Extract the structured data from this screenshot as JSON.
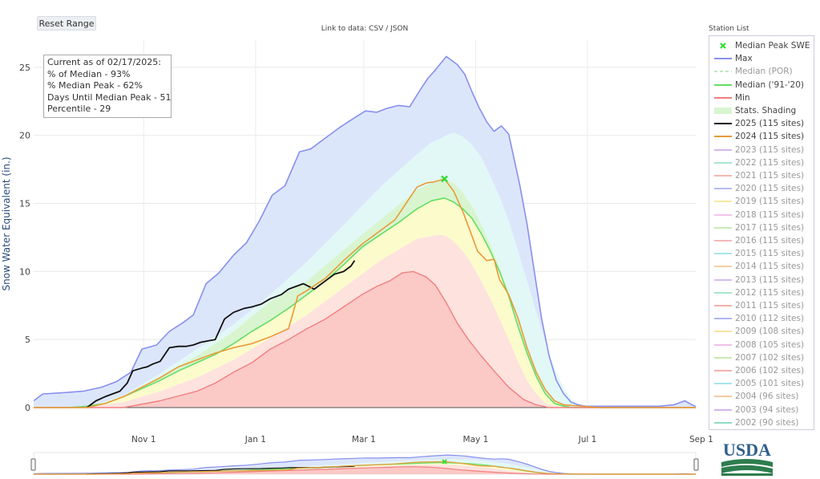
{
  "toolbar": {
    "reset_label": "Reset Range"
  },
  "link": {
    "prefix": "Link to data: ",
    "csv": "CSV",
    "sep": " / ",
    "json": "JSON"
  },
  "info": {
    "line1": "Current as of 02/17/2025:",
    "line2": "% of Median - 93%",
    "line3": "% Median Peak - 62%",
    "line4": "Days Until Median Peak - 51",
    "line5": "Percentile - 29"
  },
  "legend": {
    "title": "Station List",
    "items": [
      {
        "label": "Median Peak SWE",
        "color": "#33dd33",
        "kind": "marker",
        "active": true
      },
      {
        "label": "Max",
        "color": "#8890ee",
        "kind": "line",
        "active": true
      },
      {
        "label": "Median (POR)",
        "color": "#bfe6bf",
        "kind": "dash",
        "active": false
      },
      {
        "label": "Median ('91-'20)",
        "color": "#66dd66",
        "kind": "line",
        "active": true
      },
      {
        "label": "Min",
        "color": "#f08080",
        "kind": "line",
        "active": true
      },
      {
        "label": "Stats. Shading",
        "color": "#d8f5d0",
        "kind": "band",
        "active": true
      },
      {
        "label": "2025 (115 sites)",
        "color": "#111111",
        "kind": "line",
        "active": true
      },
      {
        "label": "2024 (115 sites)",
        "color": "#e89a3a",
        "kind": "line",
        "active": true
      },
      {
        "label": "2023 (115 sites)",
        "color": "#d3b8ec",
        "kind": "line",
        "active": false
      },
      {
        "label": "2022 (115 sites)",
        "color": "#a8e6d0",
        "kind": "line",
        "active": false
      },
      {
        "label": "2021 (115 sites)",
        "color": "#f4b8b0",
        "kind": "line",
        "active": false
      },
      {
        "label": "2020 (115 sites)",
        "color": "#b8bcf2",
        "kind": "line",
        "active": false
      },
      {
        "label": "2019 (115 sites)",
        "color": "#f7e9a0",
        "kind": "line",
        "active": false
      },
      {
        "label": "2018 (115 sites)",
        "color": "#f2c4ec",
        "kind": "line",
        "active": false
      },
      {
        "label": "2017 (115 sites)",
        "color": "#c8ecb8",
        "kind": "line",
        "active": false
      },
      {
        "label": "2016 (115 sites)",
        "color": "#f4b8b8",
        "kind": "line",
        "active": false
      },
      {
        "label": "2015 (115 sites)",
        "color": "#a8e6ea",
        "kind": "line",
        "active": false
      },
      {
        "label": "2014 (115 sites)",
        "color": "#f4d0a8",
        "kind": "line",
        "active": false
      },
      {
        "label": "2013 (115 sites)",
        "color": "#d6bcf0",
        "kind": "line",
        "active": false
      },
      {
        "label": "2012 (115 sites)",
        "color": "#a8e6c8",
        "kind": "line",
        "active": false
      },
      {
        "label": "2011 (115 sites)",
        "color": "#f4b0a8",
        "kind": "line",
        "active": false
      },
      {
        "label": "2010 (112 sites)",
        "color": "#b0b6f4",
        "kind": "line",
        "active": false
      },
      {
        "label": "2009 (108 sites)",
        "color": "#f8e4a0",
        "kind": "line",
        "active": false
      },
      {
        "label": "2008 (105 sites)",
        "color": "#f0c0e8",
        "kind": "line",
        "active": false
      },
      {
        "label": "2007 (102 sites)",
        "color": "#c8eab0",
        "kind": "line",
        "active": false
      },
      {
        "label": "2006 (102 sites)",
        "color": "#f4b0b0",
        "kind": "line",
        "active": false
      },
      {
        "label": "2005 (101 sites)",
        "color": "#a8e4ec",
        "kind": "line",
        "active": false
      },
      {
        "label": "2004 (96 sites)",
        "color": "#f4cca0",
        "kind": "line",
        "active": false
      },
      {
        "label": "2003 (94 sites)",
        "color": "#d4b4f0",
        "kind": "line",
        "active": false
      },
      {
        "label": "2002 (90 sites)",
        "color": "#90dcc0",
        "kind": "line",
        "active": false
      }
    ]
  },
  "chart_data": {
    "type": "line",
    "ylabel": "Snow Water Equivalent (in.)",
    "ylim": [
      0,
      27
    ],
    "xlim": [
      -29,
      332
    ],
    "x_unit": "day of water year (Oct 1 = 0)",
    "yticks": [
      0,
      5,
      10,
      15,
      20,
      25
    ],
    "xticks": [
      {
        "day": 31,
        "label": "Nov  1"
      },
      {
        "day": 92,
        "label": "Jan  1"
      },
      {
        "day": 151,
        "label": "Mar  1"
      },
      {
        "day": 212,
        "label": "May  1"
      },
      {
        "day": 273,
        "label": "Jul  1"
      },
      {
        "day": 335,
        "label": "Sep  1"
      }
    ],
    "grid": true,
    "legend_position": "right",
    "series": [
      {
        "name": "Max",
        "color": "#8890ee",
        "x": [
          -29,
          -24,
          -12,
          -2,
          8,
          16,
          24,
          30,
          38,
          45,
          52,
          58,
          65,
          72,
          80,
          87,
          94,
          101,
          108,
          116,
          122,
          130,
          138,
          146,
          152,
          158,
          164,
          170,
          176,
          182,
          186,
          190,
          193,
          196,
          199,
          202,
          206,
          210,
          214,
          218,
          222,
          226,
          230,
          236,
          240,
          244,
          248,
          252,
          256,
          260,
          264,
          268,
          272,
          276,
          280,
          284,
          290,
          296,
          304,
          312,
          320,
          326,
          330,
          332
        ],
        "y": [
          0.5,
          1.0,
          1.1,
          1.2,
          1.5,
          1.9,
          2.6,
          4.3,
          4.6,
          5.6,
          6.2,
          6.8,
          9.1,
          9.9,
          11.2,
          12.1,
          13.7,
          15.6,
          16.3,
          18.8,
          19.0,
          19.8,
          20.6,
          21.3,
          21.8,
          21.7,
          22.0,
          22.2,
          22.1,
          23.4,
          24.2,
          24.8,
          25.3,
          25.8,
          25.5,
          25.2,
          24.5,
          23.2,
          22.0,
          21.0,
          20.3,
          20.7,
          20.1,
          16.4,
          13.5,
          10.0,
          6.5,
          3.8,
          2.0,
          1.0,
          0.4,
          0.2,
          0.1,
          0.1,
          0.1,
          0.1,
          0.1,
          0.1,
          0.1,
          0.1,
          0.2,
          0.5,
          0.2,
          0.1
        ]
      },
      {
        "name": "Median ('91-'20)",
        "color": "#66dd66",
        "x": [
          -29,
          -10,
          0,
          10,
          20,
          30,
          40,
          50,
          60,
          70,
          80,
          90,
          100,
          110,
          120,
          130,
          140,
          150,
          160,
          170,
          180,
          188,
          195,
          200,
          205,
          210,
          215,
          220,
          225,
          230,
          235,
          240,
          245,
          250,
          255,
          260,
          265,
          270,
          280,
          300,
          320,
          332
        ],
        "y": [
          0,
          0,
          0.1,
          0.3,
          0.8,
          1.4,
          2.0,
          2.7,
          3.3,
          3.9,
          4.7,
          5.6,
          6.4,
          7.3,
          8.3,
          9.3,
          10.5,
          11.8,
          12.7,
          13.6,
          14.6,
          15.2,
          15.4,
          15.1,
          14.6,
          13.9,
          12.8,
          11.5,
          10.0,
          8.2,
          6.0,
          4.0,
          2.3,
          1.0,
          0.3,
          0.1,
          0,
          0,
          0,
          0,
          0,
          0
        ]
      },
      {
        "name": "Min",
        "color": "#f08080",
        "x": [
          -29,
          0,
          20,
          40,
          60,
          70,
          80,
          90,
          100,
          110,
          120,
          130,
          140,
          150,
          158,
          165,
          172,
          178,
          185,
          190,
          196,
          202,
          208,
          215,
          222,
          230,
          238,
          245,
          252,
          260,
          300,
          332
        ],
        "y": [
          0,
          0,
          0,
          0.5,
          1.2,
          1.8,
          2.6,
          3.3,
          4.3,
          5.0,
          5.8,
          6.5,
          7.4,
          8.3,
          8.9,
          9.3,
          9.9,
          10.0,
          9.6,
          9.0,
          7.7,
          6.2,
          5.0,
          3.8,
          2.7,
          1.5,
          0.6,
          0.2,
          0,
          0,
          0,
          0
        ]
      },
      {
        "name": "2025 (115 sites)",
        "color": "#111111",
        "x": [
          0,
          5,
          10,
          18,
          22,
          25,
          30,
          33,
          36,
          40,
          45,
          50,
          54,
          58,
          62,
          66,
          70,
          75,
          80,
          86,
          90,
          95,
          100,
          106,
          110,
          118,
          124,
          130,
          135,
          140,
          144,
          146
        ],
        "y": [
          0,
          0.5,
          0.8,
          1.2,
          1.8,
          2.7,
          2.9,
          3.0,
          3.2,
          3.4,
          4.4,
          4.5,
          4.5,
          4.6,
          4.8,
          4.9,
          5.0,
          6.5,
          7.0,
          7.3,
          7.4,
          7.6,
          8.0,
          8.3,
          8.7,
          9.1,
          8.7,
          9.3,
          9.8,
          10.0,
          10.4,
          10.8
        ]
      },
      {
        "name": "2024 (115 sites)",
        "color": "#e89a3a",
        "x": [
          -29,
          0,
          10,
          20,
          30,
          40,
          50,
          60,
          70,
          80,
          90,
          100,
          110,
          115,
          120,
          130,
          140,
          150,
          160,
          168,
          175,
          180,
          185,
          190,
          195,
          200,
          205,
          210,
          213,
          218,
          222,
          225,
          230,
          235,
          240,
          245,
          250,
          255,
          260,
          280,
          332
        ],
        "y": [
          0,
          0,
          0.3,
          0.8,
          1.5,
          2.2,
          3.0,
          3.5,
          4.0,
          4.4,
          4.7,
          5.2,
          5.8,
          8.2,
          8.6,
          9.5,
          10.8,
          12.0,
          13.0,
          13.8,
          15.2,
          16.2,
          16.5,
          16.6,
          16.8,
          15.9,
          14.4,
          12.6,
          11.5,
          10.8,
          10.9,
          9.4,
          8.3,
          6.6,
          4.4,
          2.6,
          1.3,
          0.5,
          0.2,
          0,
          0
        ]
      }
    ],
    "bands": [
      {
        "name": "Max",
        "top": "Max",
        "bottom": "p90",
        "color": "#dce6fb"
      },
      {
        "name": "90th percentile",
        "top": "p90",
        "bottom": "p70",
        "color": "#e2f8f6"
      },
      {
        "name": "70th percentile",
        "top": "p70",
        "bottom": "p50",
        "color": "#d8f5d0"
      },
      {
        "name": "50th percentile",
        "top": "p50",
        "bottom": "p30",
        "color": "#fbfbcc"
      },
      {
        "name": "30th percentile",
        "top": "p30",
        "bottom": "Min",
        "color": "#fde2de"
      },
      {
        "name": "Min",
        "top": "Min",
        "bottom": "zero",
        "color": "#fbc9c6"
      }
    ],
    "percentiles": {
      "x": [
        -29,
        0,
        20,
        40,
        60,
        80,
        100,
        120,
        140,
        160,
        170,
        180,
        188,
        192,
        196,
        200,
        205,
        210,
        215,
        220,
        225,
        230,
        235,
        240,
        245,
        250,
        255,
        260,
        265,
        270,
        280,
        332
      ],
      "p90": [
        0,
        0,
        0.9,
        2.5,
        4.3,
        6.1,
        8.3,
        10.7,
        13.4,
        16.2,
        17.4,
        18.6,
        19.5,
        19.7,
        20.0,
        20.2,
        19.9,
        19.3,
        18.4,
        17.0,
        15.5,
        13.7,
        11.5,
        9.3,
        7.0,
        4.8,
        2.9,
        1.4,
        0.5,
        0.1,
        0,
        0
      ],
      "p70": [
        0,
        0,
        0.8,
        2.3,
        3.8,
        5.6,
        7.8,
        9.3,
        11.6,
        13.8,
        14.9,
        16.0,
        16.5,
        16.6,
        16.7,
        16.5,
        15.8,
        14.8,
        13.5,
        12.0,
        10.3,
        8.5,
        6.5,
        4.5,
        2.8,
        1.4,
        0.5,
        0.1,
        0,
        0,
        0,
        0
      ],
      "p50": [
        0,
        0,
        0.8,
        2.0,
        3.3,
        4.7,
        6.4,
        8.3,
        10.5,
        12.7,
        13.6,
        14.6,
        15.2,
        15.3,
        15.4,
        15.1,
        14.5,
        13.9,
        12.8,
        11.5,
        10.0,
        8.2,
        6.0,
        4.0,
        2.3,
        1.0,
        0.3,
        0.1,
        0,
        0,
        0,
        0
      ],
      "p30": [
        0,
        0,
        0.4,
        1.2,
        2.2,
        3.5,
        5.1,
        6.8,
        8.8,
        10.8,
        11.6,
        12.4,
        12.6,
        12.7,
        12.6,
        12.2,
        11.5,
        10.5,
        9.3,
        8.0,
        6.5,
        5.0,
        3.4,
        2.0,
        1.0,
        0.3,
        0.1,
        0,
        0,
        0,
        0,
        0
      ]
    },
    "peak_marker": {
      "name": "Median Peak SWE",
      "x": 195,
      "y": 16.8
    }
  }
}
